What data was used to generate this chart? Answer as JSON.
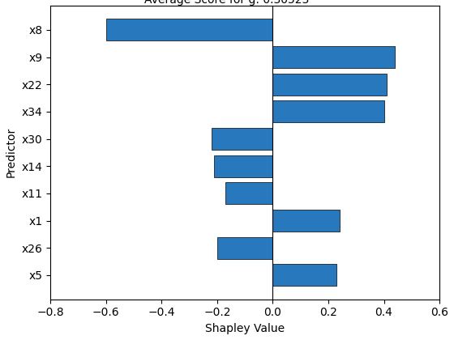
{
  "xlabel": "Shapley Value",
  "ylabel": "Predictor",
  "predictors": [
    "x8",
    "x9",
    "x22",
    "x34",
    "x30",
    "x14",
    "x11",
    "x1",
    "x26",
    "x5"
  ],
  "values": [
    -0.6,
    0.44,
    0.41,
    0.4,
    -0.22,
    -0.21,
    -0.17,
    0.24,
    -0.2,
    0.23
  ],
  "bar_color": "#2878BE",
  "xlim": [
    -0.8,
    0.6
  ],
  "xticks": [
    -0.8,
    -0.6,
    -0.4,
    -0.2,
    0.0,
    0.2,
    0.4,
    0.6
  ],
  "background_color": "#ffffff",
  "title_fontsize": 11,
  "subtitle_fontsize": 10,
  "axis_label_fontsize": 10,
  "tick_fontsize": 10
}
